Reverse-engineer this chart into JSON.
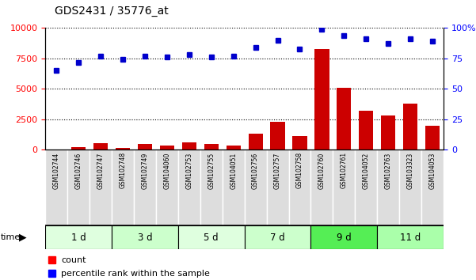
{
  "title": "GDS2431 / 35776_at",
  "samples": [
    "GSM102744",
    "GSM102746",
    "GSM102747",
    "GSM102748",
    "GSM102749",
    "GSM104060",
    "GSM102753",
    "GSM102755",
    "GSM104051",
    "GSM102756",
    "GSM102757",
    "GSM102758",
    "GSM102760",
    "GSM102761",
    "GSM104052",
    "GSM102763",
    "GSM103323",
    "GSM104053"
  ],
  "count_values": [
    30,
    200,
    550,
    150,
    450,
    350,
    600,
    450,
    350,
    1300,
    2300,
    1100,
    8300,
    5100,
    3200,
    2800,
    3800,
    2000
  ],
  "percentile_values": [
    65,
    72,
    77,
    74,
    77,
    76,
    78,
    76,
    77,
    84,
    90,
    83,
    99,
    94,
    91,
    87,
    91,
    89
  ],
  "groups": [
    {
      "label": "1 d",
      "start": 0,
      "end": 3,
      "color": "#dfffdf"
    },
    {
      "label": "3 d",
      "start": 3,
      "end": 6,
      "color": "#ccffcc"
    },
    {
      "label": "5 d",
      "start": 6,
      "end": 9,
      "color": "#dfffdf"
    },
    {
      "label": "7 d",
      "start": 9,
      "end": 12,
      "color": "#ccffcc"
    },
    {
      "label": "9 d",
      "start": 12,
      "end": 15,
      "color": "#55ee55"
    },
    {
      "label": "11 d",
      "start": 15,
      "end": 18,
      "color": "#aaffaa"
    }
  ],
  "ylim_left": [
    0,
    10000
  ],
  "ylim_right": [
    0,
    100
  ],
  "yticks_left": [
    0,
    2500,
    5000,
    7500,
    10000
  ],
  "yticks_right": [
    0,
    25,
    50,
    75,
    100
  ],
  "bar_color": "#cc0000",
  "dot_color": "#0000cc",
  "background_color": "#ffffff",
  "plot_bg_color": "#ffffff",
  "sample_bg_color": "#dddddd",
  "sample_border_color": "#ffffff"
}
